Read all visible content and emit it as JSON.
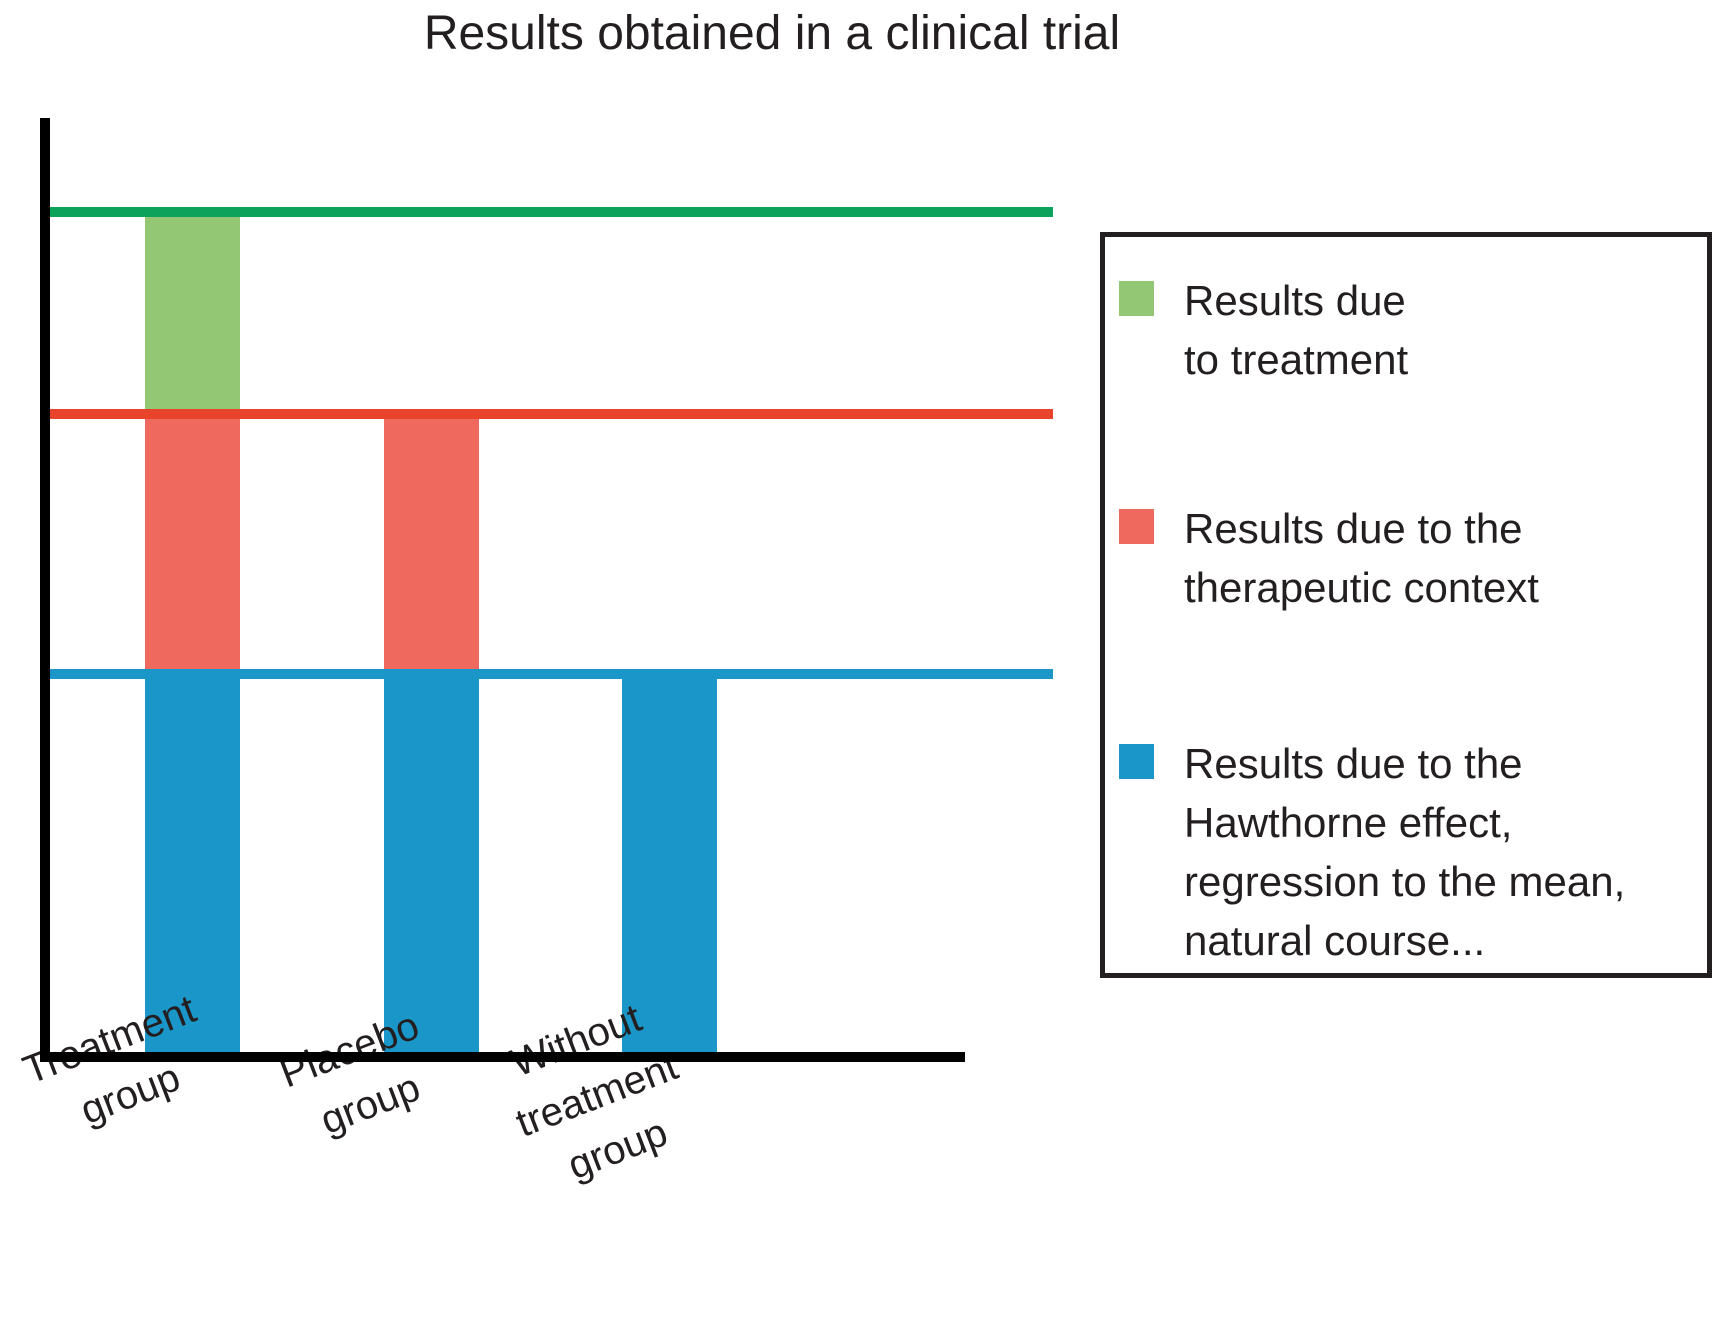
{
  "page": {
    "background": "#FFFFFF"
  },
  "chart_data": {
    "type": "bar",
    "stacked": true,
    "title": "Results obtained in a clinical trial",
    "categories": [
      "Treatment group",
      "Placebo group",
      "Without treatment group"
    ],
    "categories_lines": [
      [
        "Treatment",
        "group"
      ],
      [
        "Placebo",
        "group"
      ],
      [
        "Without",
        "treatment",
        "group"
      ]
    ],
    "series": [
      {
        "name": "Results due to treatment",
        "color": "#94C773",
        "values": [
          24,
          0,
          0
        ]
      },
      {
        "name": "Results due to the therapeutic context",
        "color": "#F0695E",
        "values": [
          31,
          31,
          0
        ]
      },
      {
        "name": "Results due to the Hawthorne effect, regression to the mean, natural course...",
        "color": "#1B96C8",
        "values": [
          45,
          45,
          45
        ]
      }
    ],
    "reference_lines": [
      {
        "value": 100,
        "color": "#0CA25C"
      },
      {
        "value": 76,
        "color": "#E8432B"
      },
      {
        "value": 45,
        "color": "#1B96C8"
      }
    ],
    "ylim": [
      0,
      112
    ],
    "yaxis_ticks": [],
    "xaxis_label_rotation_deg": -21,
    "grid": false,
    "legend_position": "right",
    "axis_color": "#000000"
  },
  "legend": {
    "items": [
      {
        "lines": [
          "Results due",
          "to treatment"
        ]
      },
      {
        "lines": [
          "Results due to the",
          "therapeutic context"
        ]
      },
      {
        "lines": [
          "Results due to the",
          "Hawthorne effect,",
          "regression to the mean,",
          "natural course..."
        ]
      }
    ]
  }
}
